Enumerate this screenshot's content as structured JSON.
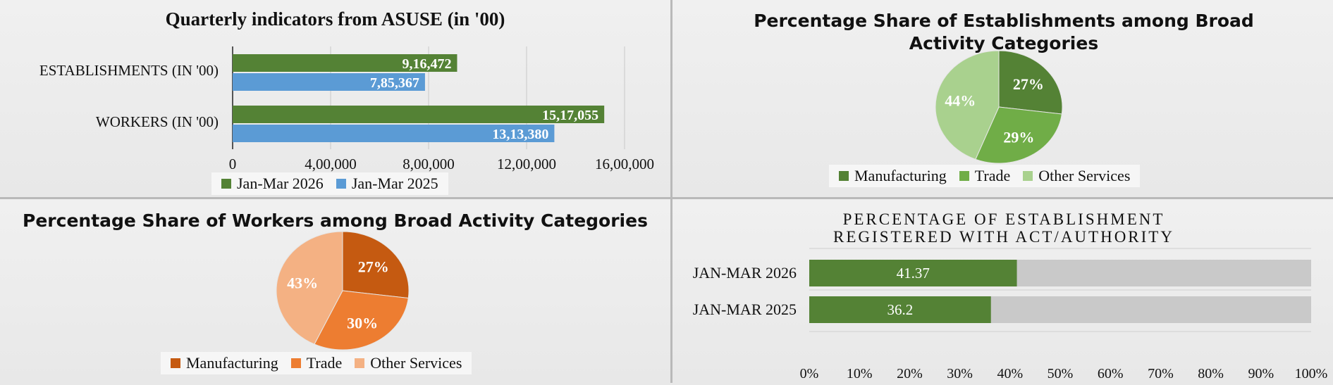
{
  "chart_data": [
    {
      "type": "bar",
      "orientation": "horizontal",
      "title": "Quarterly indicators from ASUSE (in '00)",
      "categories": [
        "ESTABLISHMENTS (IN '00)",
        "WORKERS (IN '00)"
      ],
      "series": [
        {
          "name": "Jan-Mar 2026",
          "values": [
            916472,
            1517055
          ],
          "labels": [
            "9,16,472",
            "15,17,055"
          ],
          "color": "#548235"
        },
        {
          "name": "Jan-Mar 2025",
          "values": [
            785367,
            1313380
          ],
          "labels": [
            "7,85,367",
            "13,13,380"
          ],
          "color": "#5b9bd5"
        }
      ],
      "xlim": [
        0,
        1600000
      ],
      "xticks": [
        "0",
        "4,00,000",
        "8,00,000",
        "12,00,000",
        "16,00,000"
      ],
      "grid": true,
      "legend_position": "bottom"
    },
    {
      "type": "pie",
      "title": "Percentage Share of Establishments among Broad Activity Categories",
      "categories": [
        "Manufacturing",
        "Trade",
        "Other Services"
      ],
      "values": [
        27,
        29,
        44
      ],
      "labels": [
        "27%",
        "29%",
        "44%"
      ],
      "colors": [
        "#548235",
        "#70ad47",
        "#a9d18e"
      ],
      "legend_position": "bottom"
    },
    {
      "type": "pie",
      "title": "Percentage Share of Workers among Broad Activity Categories",
      "categories": [
        "Manufacturing",
        "Trade",
        "Other Services"
      ],
      "values": [
        27,
        30,
        43
      ],
      "labels": [
        "27%",
        "30%",
        "43%"
      ],
      "colors": [
        "#c55a11",
        "#ed7d31",
        "#f4b183"
      ],
      "legend_position": "bottom"
    },
    {
      "type": "bar",
      "orientation": "horizontal",
      "stacked": "100%",
      "title": "PERCENTAGE OF ESTABLISHMENT REGISTERED WITH ACT/AUTHORITY",
      "categories": [
        "JAN-MAR 2026",
        "JAN-MAR 2025"
      ],
      "series": [
        {
          "values": [
            41.37,
            36.2
          ],
          "labels": [
            "41.37",
            "36.2"
          ],
          "color": "#548235"
        }
      ],
      "xlim": [
        0,
        100
      ],
      "xticks": [
        "0%",
        "10%",
        "20%",
        "30%",
        "40%",
        "50%",
        "60%",
        "70%",
        "80%",
        "90%",
        "100%"
      ],
      "grid": true
    }
  ]
}
